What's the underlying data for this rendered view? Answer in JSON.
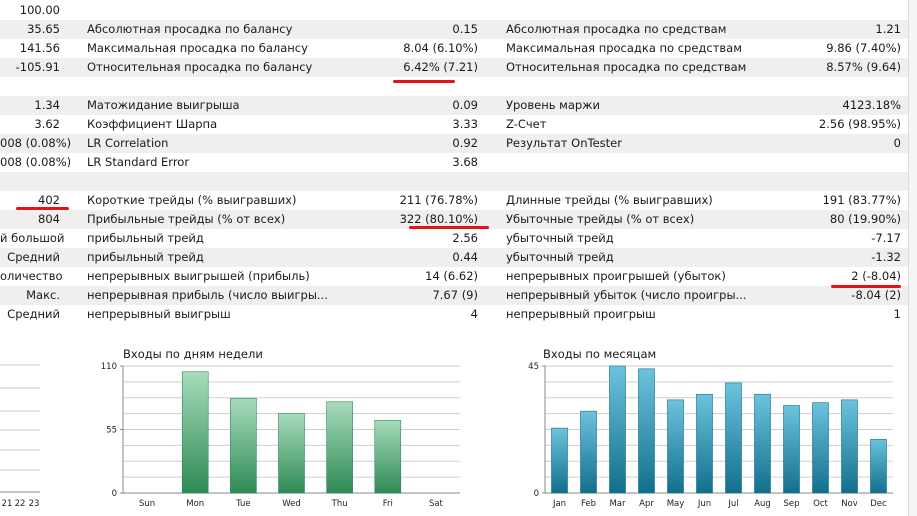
{
  "rows": [
    {
      "c0": "100.00",
      "c1": "",
      "c2": "",
      "c3": "",
      "c4": ""
    },
    {
      "c0": "35.65",
      "c1": "Абсолютная просадка по балансу",
      "c2": "0.15",
      "c3": "Абсолютная просадка по средствам",
      "c4": "1.21"
    },
    {
      "c0": "141.56",
      "c1": "Максимальная просадка по балансу",
      "c2": "8.04 (6.10%)",
      "c3": "Максимальная просадка по средствам",
      "c4": "9.86 (7.40%)"
    },
    {
      "c0": "-105.91",
      "c1": "Относительная просадка по балансу",
      "c2": "6.42% (7.21)",
      "c3": "Относительная просадка по средствам",
      "c4": "8.57% (9.64)"
    },
    {
      "c0": "",
      "c1": "",
      "c2": "",
      "c3": "",
      "c4": ""
    },
    {
      "c0": "1.34",
      "c1": "Матожидание выигрыша",
      "c2": "0.09",
      "c3": "Уровень маржи",
      "c4": "4123.18%"
    },
    {
      "c0": "3.62",
      "c1": "Коэффициент Шарпа",
      "c2": "3.33",
      "c3": "Z-Счет",
      "c4": "2.56 (98.95%)"
    },
    {
      "c0": "008 (0.08%)",
      "c1": "LR Correlation",
      "c2": "0.92",
      "c3": "Результат OnTester",
      "c4": "0"
    },
    {
      "c0": "008 (0.08%)",
      "c1": "LR Standard Error",
      "c2": "3.68",
      "c3": "",
      "c4": ""
    },
    {
      "c0": "",
      "c1": "",
      "c2": "",
      "c3": "",
      "c4": ""
    },
    {
      "c0": "402",
      "c1": "Короткие трейды (% выигравших)",
      "c2": "211 (76.78%)",
      "c3": "Длинные трейды (% выигравших)",
      "c4": "191 (83.77%)"
    },
    {
      "c0": "804",
      "c1": "Прибыльные трейды (% от всех)",
      "c2": "322 (80.10%)",
      "c3": "Убыточные трейды (% от всех)",
      "c4": "80 (19.90%)"
    },
    {
      "c0": "й большой",
      "c1": "прибыльный трейд",
      "c2": "2.56",
      "c3": "убыточный трейд",
      "c4": "-7.17"
    },
    {
      "c0": "Средний",
      "c1": "прибыльный трейд",
      "c2": "0.44",
      "c3": "убыточный трейд",
      "c4": "-1.32"
    },
    {
      "c0": "оличество",
      "c1": "непрерывных выигрышей (прибыль)",
      "c2": "14 (6.62)",
      "c3": "непрерывных проигрышей (убыток)",
      "c4": "2 (-8.04)"
    },
    {
      "c0": "Макс.",
      "c1": "непрерывная прибыль (число выигры...",
      "c2": "7.67 (9)",
      "c3": "непрерывный убыток (число проигры...",
      "c4": "-8.04 (2)"
    },
    {
      "c0": "Средний",
      "c1": "непрерывный выигрыш",
      "c2": "4",
      "c3": "непрерывный проигрыш",
      "c4": "1"
    }
  ],
  "left_chart": {
    "x_labels": [
      "21",
      "22",
      "23"
    ]
  },
  "chart_data": [
    {
      "type": "bar",
      "title": "Входы по дням недели",
      "categories": [
        "Sun",
        "Mon",
        "Tue",
        "Wed",
        "Thu",
        "Fri",
        "Sat"
      ],
      "values": [
        0,
        105,
        82,
        69,
        79,
        63,
        0
      ],
      "ylim": [
        0,
        110
      ],
      "yticks": [
        "0",
        "55",
        "110"
      ],
      "xlabel": "",
      "ylabel": "",
      "color_top": "#a8dcbc",
      "color_bottom": "#2e8a55"
    },
    {
      "type": "bar",
      "title": "Входы по месяцам",
      "categories": [
        "Jan",
        "Feb",
        "Mar",
        "Apr",
        "May",
        "Jun",
        "Jul",
        "Aug",
        "Sep",
        "Oct",
        "Nov",
        "Dec"
      ],
      "values": [
        23,
        29,
        45,
        44,
        33,
        35,
        39,
        35,
        31,
        32,
        33,
        19
      ],
      "ylim": [
        0,
        45
      ],
      "yticks": [
        "0",
        "45"
      ],
      "xlabel": "",
      "ylabel": "",
      "color_top": "#6cc3de",
      "color_bottom": "#126f8c"
    }
  ],
  "colors": {
    "highlight_underline": "#e2141b",
    "row_shade": "#efefef"
  }
}
